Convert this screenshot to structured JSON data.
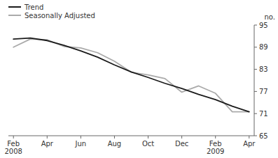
{
  "chart_data": {
    "type": "line",
    "categories": [
      "Feb\n2008",
      null,
      "Apr",
      null,
      "Jun",
      null,
      "Aug",
      null,
      "Oct",
      null,
      "Dec",
      null,
      "Feb\n2009",
      null,
      "Apr"
    ],
    "series": [
      {
        "name": "Trend",
        "color": "#1a1a1a",
        "values": [
          91.2,
          91.5,
          90.8,
          89.5,
          88.0,
          86.3,
          84.2,
          82.3,
          80.8,
          79.2,
          77.8,
          76.2,
          74.8,
          73.0,
          71.5
        ]
      },
      {
        "name": "Seasonally Adjusted",
        "color": "#aaaaaa",
        "values": [
          89.0,
          91.2,
          91.0,
          89.2,
          88.8,
          87.5,
          85.2,
          82.2,
          81.5,
          80.5,
          76.8,
          78.5,
          76.5,
          71.5,
          71.5
        ]
      }
    ],
    "ylabel": "no.",
    "ylim": [
      65,
      95
    ],
    "yticks": [
      65,
      71,
      77,
      83,
      89,
      95
    ],
    "grid": false,
    "legend": "upper left"
  }
}
